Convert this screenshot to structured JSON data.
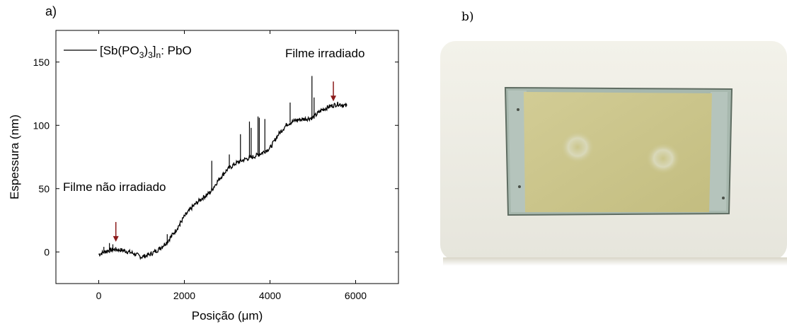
{
  "panels": {
    "a_label": "a)",
    "b_label": "b)"
  },
  "chart_data": {
    "type": "line",
    "xlabel": "Posição (μm)",
    "ylabel": "Espessura (nm)",
    "xlim": [
      -1000,
      7000
    ],
    "ylim": [
      -25,
      175
    ],
    "xticks": [
      0,
      2000,
      4000,
      6000
    ],
    "yticks": [
      0,
      50,
      100,
      150
    ],
    "grid": false,
    "legend": {
      "position": "top-left",
      "entries": [
        "[Sb(PO3)3]n: PbO"
      ]
    },
    "series": [
      {
        "name": "[Sb(PO3)3]n: PbO",
        "color": "#000000",
        "x": [
          0,
          200,
          400,
          600,
          800,
          1000,
          1200,
          1400,
          1600,
          1800,
          2000,
          2200,
          2400,
          2600,
          2800,
          3000,
          3200,
          3400,
          3600,
          3800,
          4000,
          4200,
          4400,
          4600,
          4800,
          5000,
          5200,
          5400,
          5600,
          5800
        ],
        "y": [
          -2,
          1,
          2,
          1,
          -1,
          -4,
          -2,
          2,
          8,
          17,
          28,
          36,
          42,
          47,
          57,
          65,
          70,
          73,
          75,
          78,
          82,
          93,
          101,
          104,
          105,
          106,
          112,
          115,
          117,
          115
        ]
      }
    ],
    "spikes": [
      {
        "x": 120,
        "y": 4
      },
      {
        "x": 250,
        "y": 7
      },
      {
        "x": 330,
        "y": 6
      },
      {
        "x": 1600,
        "y": 14
      },
      {
        "x": 1900,
        "y": 20
      },
      {
        "x": 2640,
        "y": 72
      },
      {
        "x": 3050,
        "y": 77
      },
      {
        "x": 3310,
        "y": 93
      },
      {
        "x": 3520,
        "y": 103
      },
      {
        "x": 3560,
        "y": 98
      },
      {
        "x": 3720,
        "y": 107
      },
      {
        "x": 3750,
        "y": 106
      },
      {
        "x": 3880,
        "y": 105
      },
      {
        "x": 4470,
        "y": 118
      },
      {
        "x": 4980,
        "y": 139
      },
      {
        "x": 5030,
        "y": 122
      }
    ],
    "annotations": [
      {
        "text": "Filme não irradiado",
        "arrow_x": 400,
        "arrow_tip_y": 8,
        "color": "#8b1a1a"
      },
      {
        "text": "Filme irradiado",
        "arrow_x": 5480,
        "arrow_tip_y": 119,
        "color": "#8b1a1a"
      }
    ]
  },
  "photo": {
    "frame_color": "#efeee5",
    "glass_color": "#a9b9b0",
    "film_color": "#cbc68c",
    "spot_color": "#d8d8b8"
  }
}
